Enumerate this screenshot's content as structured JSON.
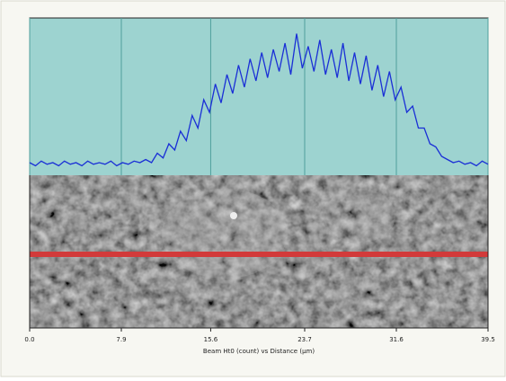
{
  "chart_data": {
    "type": "line",
    "x_label": "Beam Ht0 (count) vs Distance (µm)",
    "x": [
      0,
      0.5,
      1,
      1.5,
      2,
      2.5,
      3,
      3.5,
      4,
      4.5,
      5,
      5.5,
      6,
      6.5,
      7,
      7.5,
      8,
      8.5,
      9,
      9.5,
      10,
      10.5,
      11,
      11.5,
      12,
      12.5,
      13,
      13.5,
      14,
      14.5,
      15,
      15.5,
      16,
      16.5,
      17,
      17.5,
      18,
      18.5,
      19,
      19.5,
      20,
      20.5,
      21,
      21.5,
      22,
      22.5,
      23,
      23.5,
      24,
      24.5,
      25,
      25.5,
      26,
      26.5,
      27,
      27.5,
      28,
      28.5,
      29,
      29.5,
      30,
      30.5,
      31,
      31.5,
      32,
      32.5,
      33,
      33.5,
      34,
      34.5,
      35,
      35.5,
      36,
      36.5,
      37,
      37.5,
      38,
      38.5,
      39,
      39.5
    ],
    "series": [
      {
        "color": "#1a2fd6",
        "values": [
          8,
          6,
          9,
          7,
          8,
          6,
          9,
          7,
          8,
          6,
          9,
          7,
          8,
          7,
          9,
          6,
          8,
          7,
          9,
          8,
          10,
          8,
          14,
          11,
          20,
          16,
          28,
          22,
          38,
          30,
          48,
          40,
          58,
          46,
          64,
          52,
          70,
          56,
          74,
          60,
          78,
          62,
          80,
          66,
          84,
          64,
          90,
          68,
          82,
          66,
          86,
          64,
          80,
          62,
          84,
          60,
          78,
          58,
          76,
          54,
          70,
          50,
          66,
          48,
          56,
          40,
          44,
          30,
          30,
          20,
          18,
          12,
          10,
          8,
          9,
          7,
          8,
          6,
          9,
          7
        ]
      }
    ],
    "xlim": [
      0,
      39.5
    ],
    "xticks": [
      {
        "value": 0,
        "label": "0.0"
      },
      7.9,
      15.6,
      23.7,
      31.6,
      39.5
    ],
    "ylim": [
      0,
      100
    ],
    "grid": true
  }
}
